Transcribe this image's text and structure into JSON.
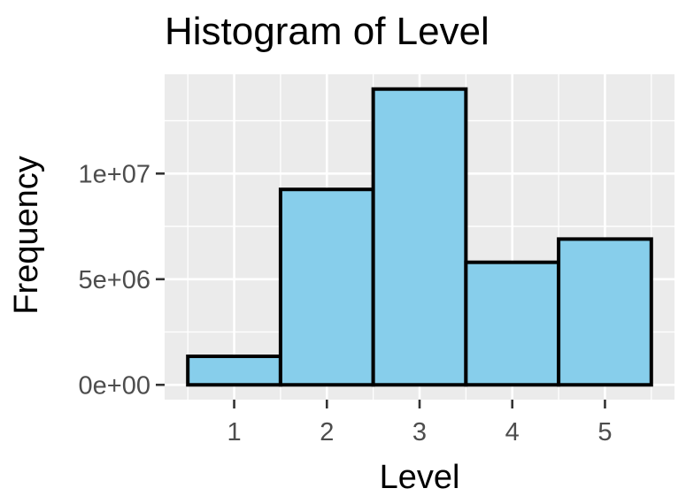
{
  "chart_data": {
    "type": "bar",
    "title": "Histogram of Level",
    "xlabel": "Level",
    "ylabel": "Frequency",
    "categories": [
      "1",
      "2",
      "3",
      "4",
      "5"
    ],
    "values": [
      1350000,
      9250000,
      14000000,
      5800000,
      6900000
    ],
    "x_ticks": [
      "1",
      "2",
      "3",
      "4",
      "5"
    ],
    "y_ticks": [
      {
        "value": 0,
        "label": "0e+00"
      },
      {
        "value": 5000000,
        "label": "5e+06"
      },
      {
        "value": 10000000,
        "label": "1e+07"
      }
    ],
    "ylim": [
      -700000,
      14700000
    ],
    "grid": true,
    "legend": "none",
    "colors": {
      "bar_fill": "#87CEEB",
      "bar_stroke": "#000000",
      "panel_background": "#EBEBEB",
      "grid": "#FFFFFF"
    }
  }
}
